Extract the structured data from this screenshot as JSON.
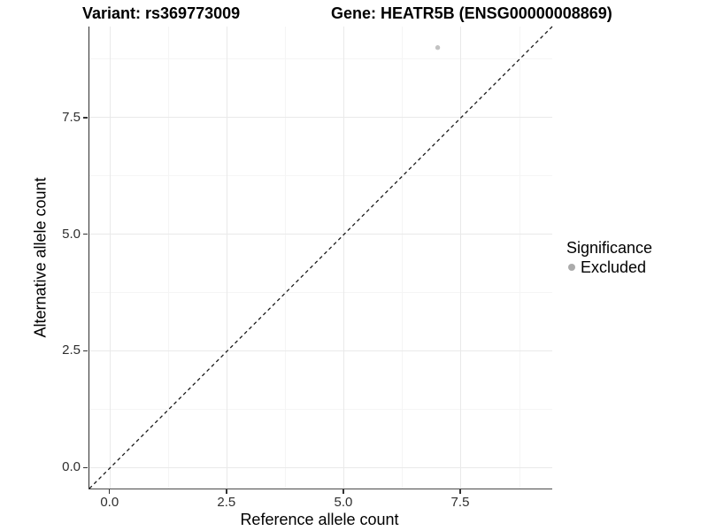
{
  "header": {
    "variant_title": "Variant: rs369773009",
    "gene_title": "Gene: HEATR5B (ENSG00000008869)"
  },
  "chart_data": {
    "type": "scatter",
    "title": "Variant: rs369773009   Gene: HEATR5B (ENSG00000008869)",
    "xlabel": "Reference allele count",
    "ylabel": "Alternative allele count",
    "xlim": [
      -0.45,
      9.45
    ],
    "ylim": [
      -0.45,
      9.45
    ],
    "x_ticks": {
      "values": [
        0,
        2.5,
        5,
        7.5
      ],
      "labels": [
        "0.0",
        "2.5",
        "5.0",
        "7.5"
      ]
    },
    "y_ticks": {
      "values": [
        0,
        2.5,
        5,
        7.5
      ],
      "labels": [
        "0.0",
        "2.5",
        "5.0",
        "7.5"
      ]
    },
    "x_minor_ticks": [
      1.25,
      3.75,
      6.25,
      8.75
    ],
    "y_minor_ticks": [
      1.25,
      3.75,
      6.25,
      8.75
    ],
    "grid": "major+minor",
    "series": [
      {
        "name": "Excluded",
        "point_color": "#c2c2c2",
        "points": [
          {
            "x": 7,
            "y": 9
          }
        ]
      }
    ],
    "identity_line": {
      "slope": 1,
      "intercept": 0,
      "style": "dashed",
      "color": "#1a1a1a"
    },
    "legend": {
      "position": "right",
      "title": "Significance",
      "entries": [
        {
          "label": "Excluded",
          "color": "#ababab"
        }
      ]
    },
    "colors": {
      "grid_major": "#e9e9e9",
      "grid_minor": "#f5f5f5",
      "axis_line": "#333333",
      "tick_text": "#2e2e2e"
    }
  }
}
